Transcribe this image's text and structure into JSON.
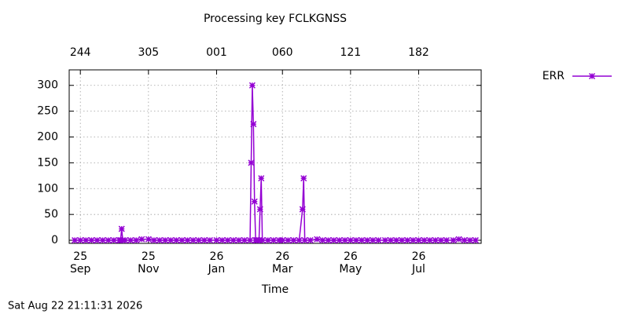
{
  "chart_data": {
    "type": "line",
    "title": "Processing key FCLKGNSS",
    "xlabel": "Time",
    "footer": "Sat Aug 22 21:11:31 2026",
    "x": [
      "2025-08-27",
      "2025-09-01",
      "2025-09-06",
      "2025-09-11",
      "2025-09-16",
      "2025-09-21",
      "2025-09-26",
      "2025-10-01",
      "2025-10-06",
      "2025-10-07",
      "2025-10-08",
      "2025-10-09",
      "2025-10-11",
      "2025-10-16",
      "2025-10-21",
      "2025-10-26",
      "2025-11-01",
      "2025-11-06",
      "2025-11-11",
      "2025-11-16",
      "2025-11-21",
      "2025-11-26",
      "2025-12-01",
      "2025-12-06",
      "2025-12-11",
      "2025-12-16",
      "2025-12-21",
      "2025-12-26",
      "2026-01-01",
      "2026-01-06",
      "2026-01-11",
      "2026-01-16",
      "2026-01-21",
      "2026-01-26",
      "2026-01-31",
      "2026-02-01",
      "2026-02-02",
      "2026-02-03",
      "2026-02-04",
      "2026-02-05",
      "2026-02-06",
      "2026-02-08",
      "2026-02-09",
      "2026-02-10",
      "2026-02-11",
      "2026-02-16",
      "2026-02-21",
      "2026-02-26",
      "2026-03-01",
      "2026-03-06",
      "2026-03-11",
      "2026-03-16",
      "2026-03-19",
      "2026-03-20",
      "2026-03-21",
      "2026-03-26",
      "2026-04-01",
      "2026-04-06",
      "2026-04-11",
      "2026-04-16",
      "2026-04-21",
      "2026-04-26",
      "2026-05-01",
      "2026-05-06",
      "2026-05-11",
      "2026-05-16",
      "2026-05-21",
      "2026-05-26",
      "2026-06-01",
      "2026-06-06",
      "2026-06-11",
      "2026-06-16",
      "2026-06-21",
      "2026-06-26",
      "2026-07-01",
      "2026-07-06",
      "2026-07-11",
      "2026-07-16",
      "2026-07-21",
      "2026-07-26",
      "2026-08-01",
      "2026-08-06",
      "2026-08-11",
      "2026-08-16",
      "2026-08-21"
    ],
    "series": [
      {
        "name": "ERR",
        "color": "#9400d3",
        "values": [
          0,
          0,
          0,
          0,
          0,
          0,
          0,
          0,
          0,
          0,
          22,
          0,
          0,
          0,
          0,
          2,
          2,
          0,
          0,
          0,
          0,
          0,
          0,
          0,
          0,
          0,
          0,
          0,
          0,
          0,
          0,
          0,
          0,
          0,
          0,
          150,
          300,
          225,
          75,
          0,
          0,
          0,
          60,
          120,
          0,
          0,
          0,
          0,
          0,
          0,
          0,
          0,
          60,
          120,
          0,
          0,
          2,
          0,
          0,
          0,
          0,
          0,
          0,
          0,
          0,
          0,
          0,
          0,
          0,
          0,
          0,
          0,
          0,
          0,
          0,
          0,
          0,
          0,
          0,
          0,
          0,
          2,
          0,
          0,
          0
        ]
      }
    ],
    "xlim": [
      "2025-08-22",
      "2026-08-26"
    ],
    "ylim": [
      -6,
      330
    ],
    "yticks": [
      0,
      50,
      100,
      150,
      200,
      250,
      300
    ],
    "xticks": [
      {
        "value": "2025-09-01",
        "label": "25\nSep"
      },
      {
        "value": "2025-11-01",
        "label": "25\nNov"
      },
      {
        "value": "2026-01-01",
        "label": "26\nJan"
      },
      {
        "value": "2026-03-01",
        "label": "26\nMar"
      },
      {
        "value": "2026-05-01",
        "label": "26\nMay"
      },
      {
        "value": "2026-07-01",
        "label": "26\nJul"
      }
    ],
    "x2ticks": [
      {
        "value": "2025-09-01",
        "label": "244"
      },
      {
        "value": "2025-11-01",
        "label": "305"
      },
      {
        "value": "2026-01-01",
        "label": "001"
      },
      {
        "value": "2026-03-01",
        "label": "060"
      },
      {
        "value": "2026-05-01",
        "label": "121"
      },
      {
        "value": "2026-07-01",
        "label": "182"
      }
    ],
    "grid": true,
    "legend": "right"
  }
}
